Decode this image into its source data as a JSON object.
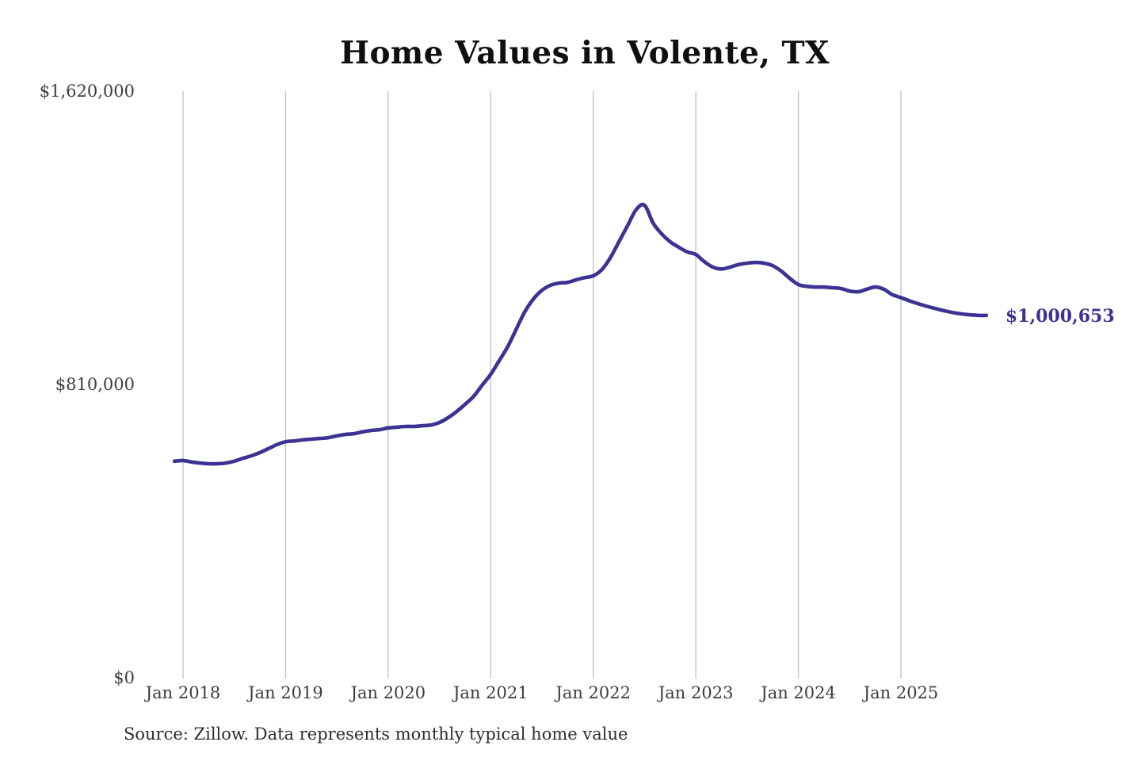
{
  "title": "Home Values in Volente, TX",
  "source_note": "Source: Zillow. Data represents monthly typical home value",
  "colors": {
    "line": "#3b3294",
    "grid": "#c4c4c4",
    "title_text": "#0f0f0f",
    "axis_text": "#3d3d3d",
    "source_text": "#2d2d2d",
    "background": "#ffffff"
  },
  "chart_data": {
    "type": "line",
    "title": "Home Values in Volente, TX",
    "xlabel": "",
    "ylabel": "",
    "ylim": [
      0,
      1620000
    ],
    "grid": "vertical-only",
    "legend": "none",
    "latest_value": 1000653,
    "latest_value_label": "$1,000,653",
    "yticks": [
      {
        "label": "$0",
        "value": 0
      },
      {
        "label": "$810,000",
        "value": 810000
      },
      {
        "label": "$1,620,000",
        "value": 1620000
      }
    ],
    "xticks": [
      {
        "label": "Jan 2018",
        "month": "2018-01"
      },
      {
        "label": "Jan 2019",
        "month": "2019-01"
      },
      {
        "label": "Jan 2020",
        "month": "2020-01"
      },
      {
        "label": "Jan 2021",
        "month": "2021-01"
      },
      {
        "label": "Jan 2022",
        "month": "2022-01"
      },
      {
        "label": "Jan 2023",
        "month": "2023-01"
      },
      {
        "label": "Jan 2024",
        "month": "2024-01"
      },
      {
        "label": "Jan 2025",
        "month": "2025-01"
      }
    ],
    "series": [
      {
        "name": "Monthly typical home value",
        "months": [
          "2017-12",
          "2018-01",
          "2018-02",
          "2018-03",
          "2018-04",
          "2018-05",
          "2018-06",
          "2018-07",
          "2018-08",
          "2018-09",
          "2018-10",
          "2018-11",
          "2018-12",
          "2019-01",
          "2019-02",
          "2019-03",
          "2019-04",
          "2019-05",
          "2019-06",
          "2019-07",
          "2019-08",
          "2019-09",
          "2019-10",
          "2019-11",
          "2019-12",
          "2020-01",
          "2020-02",
          "2020-03",
          "2020-04",
          "2020-05",
          "2020-06",
          "2020-07",
          "2020-08",
          "2020-09",
          "2020-10",
          "2020-11",
          "2020-12",
          "2021-01",
          "2021-02",
          "2021-03",
          "2021-04",
          "2021-05",
          "2021-06",
          "2021-07",
          "2021-08",
          "2021-09",
          "2021-10",
          "2021-11",
          "2021-12",
          "2022-01",
          "2022-02",
          "2022-03",
          "2022-04",
          "2022-05",
          "2022-06",
          "2022-07",
          "2022-08",
          "2022-09",
          "2022-10",
          "2022-11",
          "2022-12",
          "2023-01",
          "2023-02",
          "2023-03",
          "2023-04",
          "2023-05",
          "2023-06",
          "2023-07",
          "2023-08",
          "2023-09",
          "2023-10",
          "2023-11",
          "2023-12",
          "2024-01",
          "2024-02",
          "2024-03",
          "2024-04",
          "2024-05",
          "2024-06",
          "2024-07",
          "2024-08",
          "2024-09",
          "2024-10",
          "2024-11",
          "2024-12",
          "2025-01",
          "2025-02",
          "2025-03",
          "2025-04",
          "2025-05",
          "2025-06",
          "2025-07",
          "2025-08",
          "2025-09",
          "2025-10",
          "2025-11"
        ],
        "values": [
          598000,
          600000,
          596000,
          593000,
          591000,
          591000,
          593000,
          598000,
          606000,
          613000,
          622000,
          633000,
          644000,
          652000,
          654000,
          657000,
          659000,
          661000,
          663000,
          668000,
          672000,
          674000,
          679000,
          683000,
          685000,
          690000,
          692000,
          694000,
          694000,
          696000,
          698000,
          705000,
          718000,
          735000,
          755000,
          777000,
          808000,
          838000,
          876000,
          915000,
          963000,
          1011000,
          1046000,
          1070000,
          1084000,
          1090000,
          1092000,
          1099000,
          1105000,
          1110000,
          1127000,
          1160000,
          1204000,
          1248000,
          1292000,
          1305000,
          1256000,
          1226000,
          1204000,
          1189000,
          1176000,
          1169000,
          1149000,
          1134000,
          1129000,
          1134000,
          1141000,
          1145000,
          1147000,
          1145000,
          1138000,
          1123000,
          1103000,
          1086000,
          1081000,
          1079000,
          1079000,
          1077000,
          1075000,
          1068000,
          1066000,
          1073000,
          1079000,
          1073000,
          1058000,
          1050000,
          1041000,
          1033000,
          1026000,
          1020000,
          1014000,
          1009000,
          1005000,
          1002500,
          1001000,
          1000653
        ]
      }
    ]
  }
}
